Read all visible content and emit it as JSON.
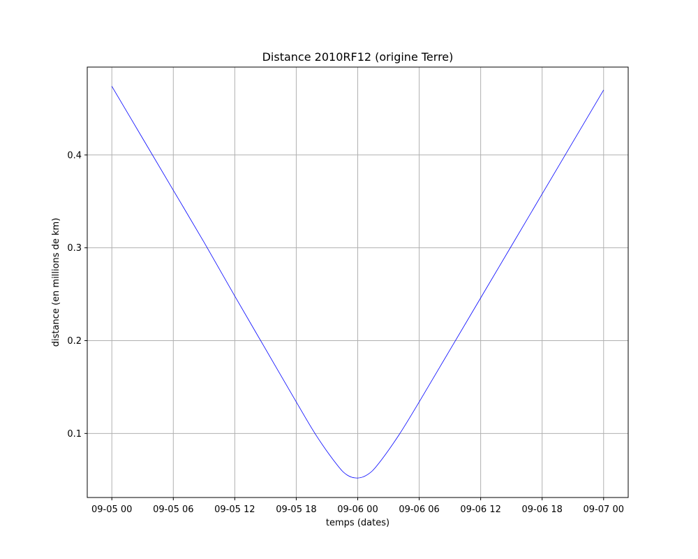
{
  "chart_data": {
    "type": "line",
    "title": "Distance 2010RF12 (origine Terre)",
    "xlabel": "temps (dates)",
    "ylabel": "distance (en millions de km)",
    "x_tick_labels": [
      "09-05 00",
      "09-05 06",
      "09-05 12",
      "09-05 18",
      "09-06 00",
      "09-06 06",
      "09-06 12",
      "09-06 18",
      "09-07 00"
    ],
    "y_tick_labels": [
      "0.1",
      "0.2",
      "0.3",
      "0.4"
    ],
    "y_ticks": [
      0.1,
      0.2,
      0.3,
      0.4
    ],
    "xlim": [
      "2024-09-04 21:36",
      "2024-09-07 02:24"
    ],
    "ylim": [
      0.031,
      0.4947
    ],
    "grid": true,
    "line_color": "#0000ff",
    "series": [
      {
        "name": "",
        "x": [
          "09-05 00:00",
          "09-05 03:00",
          "09-05 06:00",
          "09-05 09:00",
          "09-05 12:00",
          "09-05 15:00",
          "09-05 18:00",
          "09-05 20:00",
          "09-05 22:00",
          "09-05 23:00",
          "09-06 00:00",
          "09-06 01:00",
          "09-06 02:00",
          "09-06 04:00",
          "09-06 06:00",
          "09-06 09:00",
          "09-06 12:00",
          "09-06 15:00",
          "09-06 18:00",
          "09-06 21:00",
          "09-07 00:00"
        ],
        "y": [
          0.474,
          0.418,
          0.362,
          0.306,
          0.248,
          0.191,
          0.134,
          0.097,
          0.066,
          0.055,
          0.052,
          0.056,
          0.067,
          0.098,
          0.134,
          0.19,
          0.246,
          0.302,
          0.358,
          0.414,
          0.47
        ]
      }
    ]
  }
}
